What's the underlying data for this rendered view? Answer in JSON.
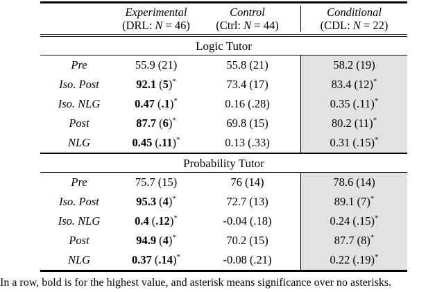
{
  "header": {
    "columns": [
      {
        "title": "Experimental",
        "sub_before": "(DRL: ",
        "n_symbol": "N",
        "sub_after": " = 46)"
      },
      {
        "title": "Control",
        "sub_before": "(Ctrl: ",
        "n_symbol": "N",
        "sub_after": " = 44)"
      },
      {
        "title": "Conditional",
        "sub_before": "(CDL: ",
        "n_symbol": "N",
        "sub_after": " = 22)"
      }
    ]
  },
  "sections": [
    {
      "title": "Logic Tutor",
      "rows": [
        {
          "label": "Pre",
          "cells": [
            {
              "value": "55.9",
              "paren": "21",
              "bold": false,
              "star": false
            },
            {
              "value": "55.8",
              "paren": "21",
              "bold": false,
              "star": false
            },
            {
              "value": "58.2",
              "paren": "19",
              "bold": false,
              "star": false
            }
          ]
        },
        {
          "label": "Iso. Post",
          "cells": [
            {
              "value": "92.1",
              "paren": "5",
              "bold": true,
              "star": true
            },
            {
              "value": "73.4",
              "paren": "17",
              "bold": false,
              "star": false
            },
            {
              "value": "83.4",
              "paren": "12",
              "bold": false,
              "star": true
            }
          ]
        },
        {
          "label": "Iso. NLG",
          "cells": [
            {
              "value": "0.47",
              "paren": ".1",
              "bold": true,
              "star": true
            },
            {
              "value": "0.16",
              "paren": ".28",
              "bold": false,
              "star": false
            },
            {
              "value": "0.35",
              "paren": ".11",
              "bold": false,
              "star": true
            }
          ]
        },
        {
          "label": "Post",
          "cells": [
            {
              "value": "87.7",
              "paren": "6",
              "bold": true,
              "star": true
            },
            {
              "value": "69.8",
              "paren": "15",
              "bold": false,
              "star": false
            },
            {
              "value": "80.2",
              "paren": "11",
              "bold": false,
              "star": true
            }
          ]
        },
        {
          "label": "NLG",
          "cells": [
            {
              "value": "0.45",
              "paren": ".11",
              "bold": true,
              "star": true
            },
            {
              "value": "0.13",
              "paren": ".33",
              "bold": false,
              "star": false
            },
            {
              "value": "0.31",
              "paren": ".15",
              "bold": false,
              "star": true
            }
          ]
        }
      ]
    },
    {
      "title": "Probability Tutor",
      "rows": [
        {
          "label": "Pre",
          "cells": [
            {
              "value": "75.7",
              "paren": "15",
              "bold": false,
              "star": false
            },
            {
              "value": "76",
              "paren": "14",
              "bold": false,
              "star": false
            },
            {
              "value": "78.6",
              "paren": "14",
              "bold": false,
              "star": false
            }
          ]
        },
        {
          "label": "Iso. Post",
          "cells": [
            {
              "value": "95.3",
              "paren": "4",
              "bold": true,
              "star": true
            },
            {
              "value": "72.7",
              "paren": "13",
              "bold": false,
              "star": false
            },
            {
              "value": "89.1",
              "paren": "7",
              "bold": false,
              "star": true
            }
          ]
        },
        {
          "label": "Iso. NLG",
          "cells": [
            {
              "value": "0.4",
              "paren": ".12",
              "bold": true,
              "star": true
            },
            {
              "value": "-0.04",
              "paren": ".18",
              "bold": false,
              "star": false
            },
            {
              "value": "0.24",
              "paren": ".15",
              "bold": false,
              "star": true
            }
          ]
        },
        {
          "label": "Post",
          "cells": [
            {
              "value": "94.9",
              "paren": "4",
              "bold": true,
              "star": true
            },
            {
              "value": "70.2",
              "paren": "15",
              "bold": false,
              "star": false
            },
            {
              "value": "87.7",
              "paren": "8",
              "bold": false,
              "star": true
            }
          ]
        },
        {
          "label": "NLG",
          "cells": [
            {
              "value": "0.37",
              "paren": ".14",
              "bold": true,
              "star": true
            },
            {
              "value": "-0.08",
              "paren": ".21",
              "bold": false,
              "star": false
            },
            {
              "value": "0.22",
              "paren": ".19",
              "bold": false,
              "star": true
            }
          ]
        }
      ]
    }
  ],
  "caption": "In a row, bold is for the highest value, and asterisk means significance over no asterisks.",
  "colors": {
    "highlight_bg": "#e2e2e2",
    "rule": "#000000"
  },
  "symbols": {
    "star": "*",
    "paren_open": "(",
    "paren_close": ")"
  }
}
